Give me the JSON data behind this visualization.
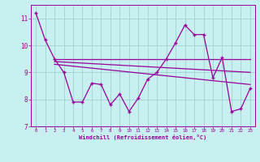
{
  "xlabel": "Windchill (Refroidissement éolien,°C)",
  "xlim": [
    -0.5,
    23.5
  ],
  "ylim": [
    7,
    11.5
  ],
  "yticks": [
    7,
    8,
    9,
    10,
    11
  ],
  "xticks": [
    0,
    1,
    2,
    3,
    4,
    5,
    6,
    7,
    8,
    9,
    10,
    11,
    12,
    13,
    14,
    15,
    16,
    17,
    18,
    19,
    20,
    21,
    22,
    23
  ],
  "bg_color": "#c8f0f0",
  "line_color": "#990099",
  "grid_color": "#99cccc",
  "series1_x": [
    0,
    1,
    2,
    3,
    4,
    5,
    6,
    7,
    8,
    9,
    10,
    11,
    12,
    13,
    14,
    15,
    16,
    17,
    18,
    19,
    20,
    21,
    22,
    23
  ],
  "series1_y": [
    11.2,
    10.2,
    9.5,
    9.0,
    7.9,
    7.9,
    8.6,
    8.55,
    7.8,
    8.2,
    7.55,
    8.05,
    8.75,
    9.0,
    9.5,
    10.1,
    10.75,
    10.4,
    10.4,
    8.8,
    9.55,
    7.55,
    7.65,
    8.4
  ],
  "trend1_x": [
    2,
    23
  ],
  "trend1_y": [
    9.5,
    9.5
  ],
  "trend2_x": [
    2,
    23
  ],
  "trend2_y": [
    9.4,
    9.0
  ],
  "trend3_x": [
    2,
    23
  ],
  "trend3_y": [
    9.3,
    8.55
  ]
}
